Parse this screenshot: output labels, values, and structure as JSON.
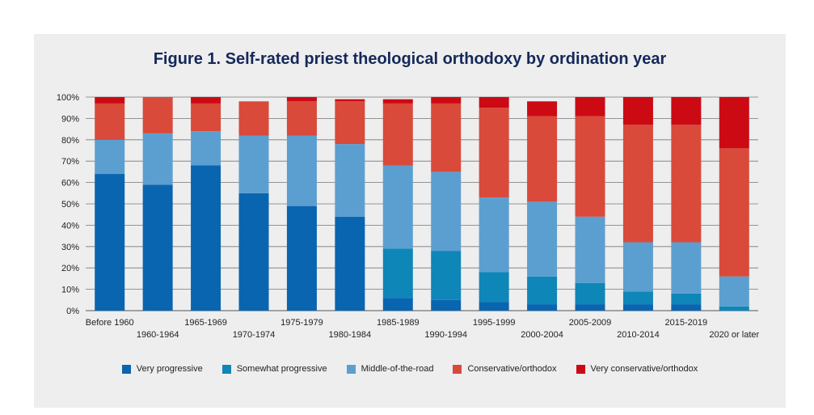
{
  "chart_data": {
    "type": "bar",
    "stacked": true,
    "title": "Figure 1. Self-rated priest theological orthodoxy by ordination year",
    "xlabel": "",
    "ylabel": "",
    "ylim": [
      0,
      100
    ],
    "y_ticks": [
      "0%",
      "10%",
      "20%",
      "30%",
      "40%",
      "50%",
      "60%",
      "70%",
      "80%",
      "90%",
      "100%"
    ],
    "grid": true,
    "legend_position": "bottom",
    "categories": [
      "Before 1960",
      "1960-1964",
      "1965-1969",
      "1970-1974",
      "1975-1979",
      "1980-1984",
      "1985-1989",
      "1990-1994",
      "1995-1999",
      "2000-2004",
      "2005-2009",
      "2010-2014",
      "2015-2019",
      "2020 or later"
    ],
    "series": [
      {
        "name": "Very progressive",
        "color": "#0a65b0",
        "values": [
          64,
          59,
          68,
          55,
          49,
          44,
          6,
          5,
          4,
          3,
          3,
          3,
          3,
          0
        ]
      },
      {
        "name": "Somewhat progressive",
        "color": "#0e86b8",
        "values": [
          0,
          0,
          0,
          0,
          0,
          0,
          23,
          23,
          14,
          13,
          10,
          6,
          5,
          2
        ]
      },
      {
        "name": "Middle-of-the-road",
        "color": "#5b9fd0",
        "values": [
          16,
          24,
          16,
          27,
          33,
          34,
          39,
          37,
          35,
          35,
          31,
          23,
          24,
          14
        ]
      },
      {
        "name": "Conservative/orthodox",
        "color": "#d94a3a",
        "values": [
          17,
          17,
          13,
          16,
          16,
          20,
          29,
          32,
          42,
          40,
          47,
          55,
          55,
          60
        ]
      },
      {
        "name": "Very conservative/orthodox",
        "color": "#cc0a14",
        "values": [
          3,
          0,
          3,
          0,
          2,
          1,
          2,
          3,
          5,
          7,
          9,
          13,
          13,
          24
        ]
      }
    ]
  }
}
